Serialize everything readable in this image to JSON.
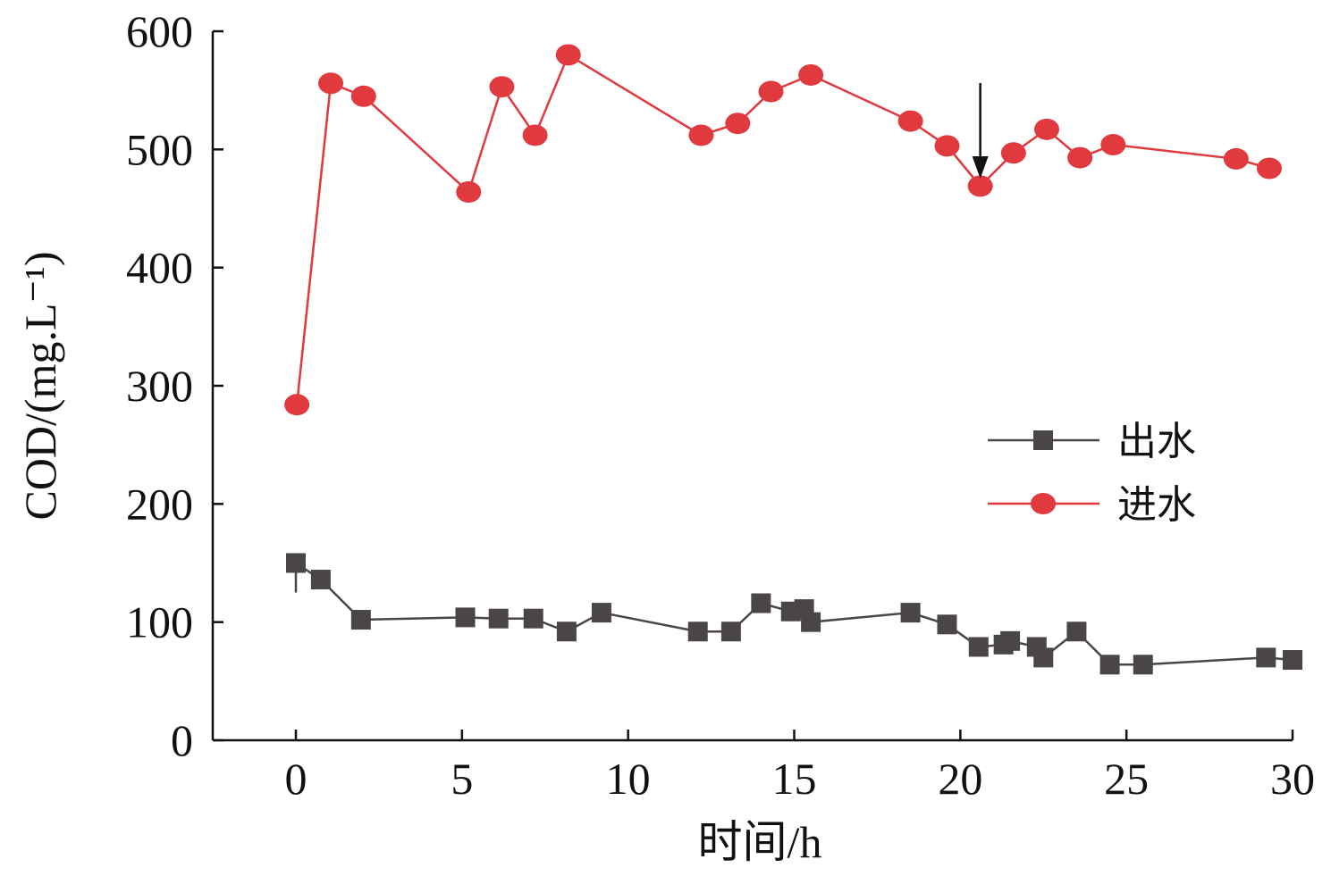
{
  "chart_data": {
    "type": "line",
    "xlabel": "时间/h",
    "ylabel": "COD/(mg.L⁻¹)",
    "xlim": [
      -2.5,
      30
    ],
    "ylim": [
      0,
      600
    ],
    "xticks": [
      0,
      5,
      10,
      15,
      20,
      25,
      30
    ],
    "yticks": [
      0,
      100,
      200,
      300,
      400,
      500,
      600
    ],
    "legend_position": "center-right",
    "annotation": {
      "type": "arrow",
      "x": 20.6,
      "points_to_series": "进水"
    },
    "series": [
      {
        "name": "出水",
        "color": "#4a4646",
        "marker": "square",
        "x": [
          0,
          0.75,
          1.96,
          5.1,
          6.1,
          7.15,
          8.15,
          9.2,
          12.1,
          13.1,
          14.0,
          14.9,
          15.3,
          15.5,
          18.5,
          19.6,
          20.55,
          21.3,
          21.5,
          22.3,
          22.5,
          23.5,
          24.5,
          25.5,
          29.2,
          30.0
        ],
        "y": [
          150,
          136,
          102,
          104,
          103,
          103,
          92,
          108,
          92,
          92,
          116,
          109,
          111,
          100,
          108,
          98,
          79,
          81,
          84,
          79,
          70,
          92,
          64,
          64,
          70,
          68
        ],
        "error_low_first": 125
      },
      {
        "name": "进水",
        "color": "#e0393e",
        "marker": "circle",
        "x": [
          0.03,
          1.05,
          2.04,
          5.2,
          6.2,
          7.2,
          8.2,
          12.2,
          13.3,
          14.3,
          15.5,
          18.5,
          19.6,
          20.6,
          21.6,
          22.6,
          23.6,
          24.6,
          28.3,
          29.3
        ],
        "y": [
          284,
          556,
          545,
          464,
          553,
          512,
          580,
          512,
          522,
          549,
          563,
          524,
          503,
          469,
          497,
          517,
          493,
          504,
          492,
          484
        ]
      }
    ]
  }
}
